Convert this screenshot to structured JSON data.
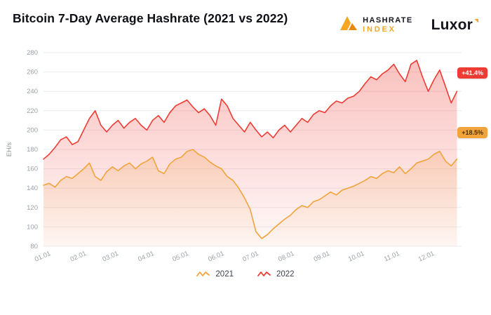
{
  "header": {
    "title": "Bitcoin 7-Day Average Hashrate (2021 vs 2022)"
  },
  "logos": {
    "hashrate_line1": "HASHRATE",
    "hashrate_line2": "INDEX",
    "luxor": "Luxor"
  },
  "badges": {
    "red_label": "+41.4%",
    "orange_label": "+18.5%"
  },
  "legend": [
    {
      "label": "2021",
      "color": "#F1A43A"
    },
    {
      "label": "2022",
      "color": "#EE3B33"
    }
  ],
  "chart_data": {
    "type": "line",
    "title": "Bitcoin 7-Day Average Hashrate (2021 vs 2022)",
    "xlabel": "",
    "ylabel": "EH/s",
    "ylim": [
      80,
      280
    ],
    "yticks": [
      80,
      100,
      120,
      140,
      160,
      180,
      200,
      220,
      240,
      260,
      280
    ],
    "x_tick_labels": [
      "01.01",
      "02.01",
      "03.01",
      "04.01",
      "05.01",
      "06.01",
      "07.01",
      "08.01",
      "09.01",
      "10.01",
      "11.01",
      "12.01"
    ],
    "x_tick_days": [
      1,
      32,
      60,
      91,
      121,
      152,
      182,
      213,
      244,
      274,
      305,
      335
    ],
    "x_domain_days": [
      1,
      365
    ],
    "x_start_day": 1,
    "x_step_days": 5,
    "grid": "horizontal",
    "legend_position": "bottom",
    "series": [
      {
        "name": "2021",
        "color": "#F1A43A",
        "change_label": "+18.5%",
        "values": [
          143,
          145,
          141,
          148,
          152,
          150,
          155,
          160,
          166,
          152,
          148,
          157,
          162,
          158,
          163,
          166,
          160,
          165,
          168,
          172,
          158,
          155,
          165,
          170,
          172,
          178,
          180,
          175,
          172,
          167,
          163,
          160,
          152,
          148,
          140,
          130,
          118,
          95,
          88,
          92,
          98,
          103,
          108,
          112,
          118,
          122,
          120,
          126,
          128,
          132,
          136,
          133,
          138,
          140,
          142,
          145,
          148,
          152,
          150,
          155,
          158,
          156,
          162,
          155,
          160,
          166,
          168,
          170,
          175,
          178,
          168,
          163,
          170
        ]
      },
      {
        "name": "2022",
        "color": "#EE3B33",
        "change_label": "+41.4%",
        "values": [
          170,
          175,
          182,
          190,
          193,
          185,
          188,
          200,
          212,
          220,
          205,
          198,
          205,
          210,
          202,
          208,
          212,
          205,
          200,
          210,
          215,
          208,
          218,
          225,
          228,
          231,
          224,
          218,
          222,
          215,
          205,
          232,
          225,
          212,
          205,
          198,
          208,
          200,
          193,
          198,
          192,
          200,
          205,
          198,
          205,
          212,
          208,
          216,
          220,
          218,
          225,
          230,
          228,
          233,
          235,
          240,
          248,
          255,
          252,
          258,
          262,
          268,
          258,
          250,
          268,
          272,
          255,
          240,
          252,
          262,
          245,
          228,
          240
        ]
      }
    ]
  }
}
